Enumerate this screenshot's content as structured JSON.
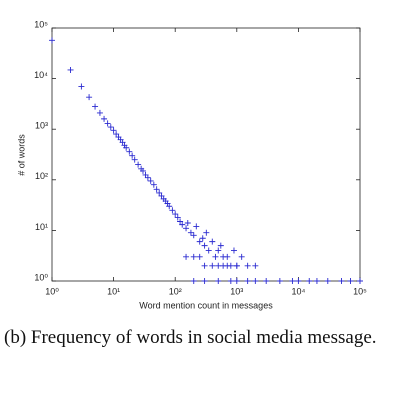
{
  "chart_data": {
    "type": "scatter",
    "xlabel": "Word mention count in messages",
    "ylabel": "# of words",
    "log_x": true,
    "log_y": true,
    "marker": "+",
    "xlim": [
      1,
      100000
    ],
    "ylim": [
      1,
      100000
    ],
    "xticks": [
      {
        "value": 1,
        "label": "10⁰"
      },
      {
        "value": 10,
        "label": "10¹"
      },
      {
        "value": 100,
        "label": "10²"
      },
      {
        "value": 1000,
        "label": "10³"
      },
      {
        "value": 10000,
        "label": "10⁴"
      },
      {
        "value": 100000,
        "label": "10⁵"
      }
    ],
    "yticks": [
      {
        "value": 1,
        "label": "10⁰"
      },
      {
        "value": 10,
        "label": "10¹"
      },
      {
        "value": 100,
        "label": "10²"
      },
      {
        "value": 1000,
        "label": "10³"
      },
      {
        "value": 10000,
        "label": "10⁴"
      },
      {
        "value": 100000,
        "label": "10⁵"
      }
    ],
    "series": [
      {
        "color": "#2a2ad0",
        "x": [
          1,
          2,
          3,
          4,
          5,
          6,
          7,
          8,
          9,
          10,
          11,
          12,
          13,
          14,
          15,
          16,
          18,
          20,
          22,
          25,
          28,
          30,
          33,
          36,
          40,
          45,
          50,
          55,
          60,
          65,
          70,
          75,
          80,
          90,
          100,
          110,
          120,
          130,
          150,
          160,
          180,
          200,
          220,
          250,
          280,
          300,
          320,
          350,
          400,
          450,
          500,
          550,
          600,
          700,
          800,
          900,
          1000,
          1200,
          1500,
          2000,
          150,
          200,
          250,
          300,
          400,
          500,
          600,
          700,
          1000,
          200,
          300,
          500,
          800,
          1000,
          1500,
          2000,
          3000,
          5000,
          8000,
          10000,
          15000,
          20000,
          30000,
          50000,
          70000,
          100000
        ],
        "values": [
          57000,
          14800,
          7000,
          4300,
          2800,
          2100,
          1600,
          1300,
          1100,
          950,
          800,
          700,
          620,
          550,
          480,
          430,
          360,
          300,
          250,
          200,
          165,
          150,
          125,
          110,
          95,
          80,
          65,
          55,
          48,
          42,
          38,
          34,
          30,
          25,
          21,
          18,
          15,
          13,
          11,
          14,
          9,
          8,
          12,
          6,
          7,
          5,
          9,
          4,
          6,
          3,
          4,
          5,
          3,
          3,
          2,
          4,
          2,
          3,
          2,
          2,
          3,
          3,
          3,
          2,
          2,
          2,
          2,
          2,
          2,
          1,
          1,
          1,
          1,
          1,
          1,
          1,
          1,
          1,
          1,
          1,
          1,
          1,
          1,
          1,
          1,
          1
        ]
      }
    ]
  },
  "caption": "(b)  Frequency of words in social media message."
}
